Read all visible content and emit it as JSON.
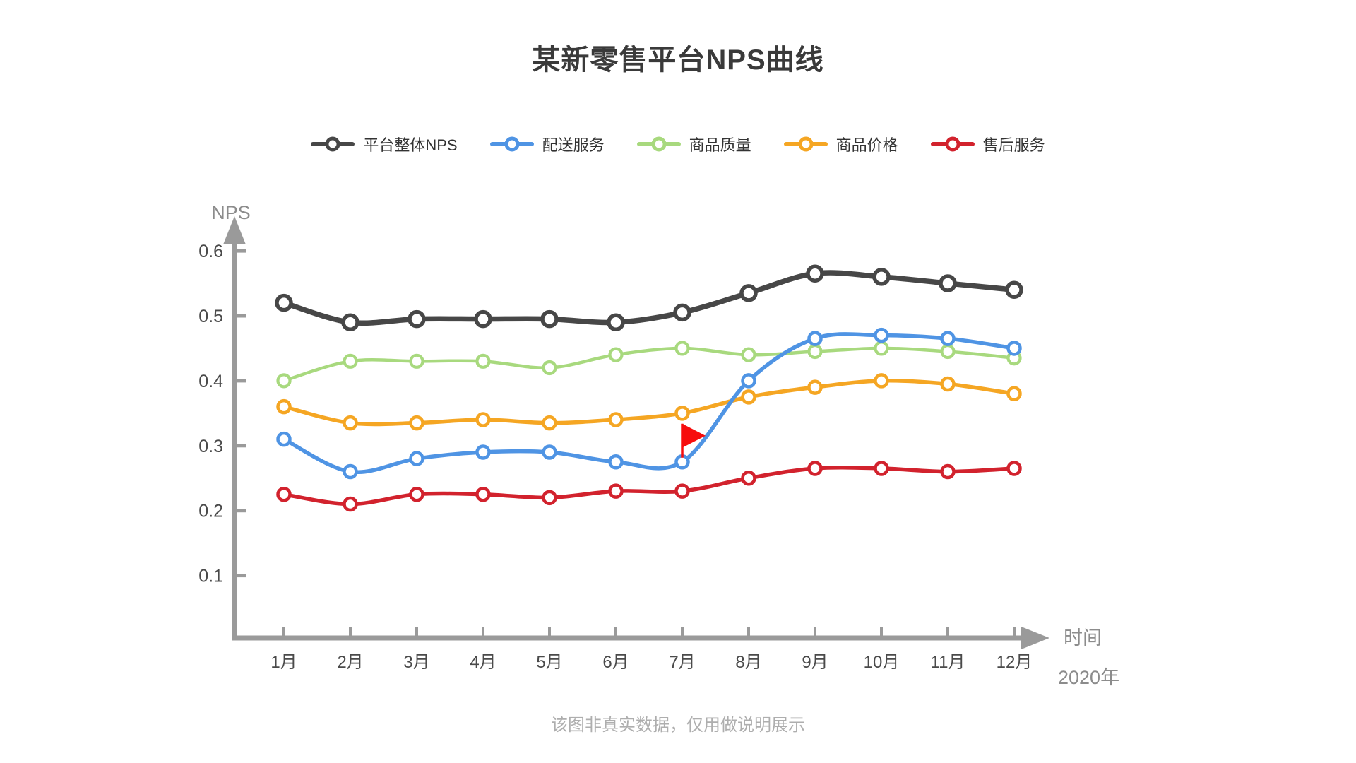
{
  "title": "某新零售平台NPS曲线",
  "footer": "该图非真实数据，仅用做说明展示",
  "chart_data": {
    "type": "line",
    "title": "某新零售平台NPS曲线",
    "x_label": "时间",
    "x_sublabel": "2020年",
    "y_label": "NPS",
    "categories": [
      "1月",
      "2月",
      "3月",
      "4月",
      "5月",
      "6月",
      "7月",
      "8月",
      "9月",
      "10月",
      "11月",
      "12月"
    ],
    "ytick_labels": [
      "0.1",
      "0.2",
      "0.3",
      "0.4",
      "0.5",
      "0.6"
    ],
    "ylim": [
      0,
      0.65
    ],
    "grid": "off",
    "legend_position": "top-center",
    "axis_color": "#9a9a9a",
    "series": [
      {
        "name": "平台整体NPS",
        "color": "#474747",
        "values": [
          0.52,
          0.49,
          0.495,
          0.495,
          0.495,
          0.49,
          0.505,
          0.535,
          0.565,
          0.56,
          0.55,
          0.54
        ]
      },
      {
        "name": "配送服务",
        "color": "#4f94e4",
        "values": [
          0.31,
          0.26,
          0.28,
          0.29,
          0.29,
          0.275,
          0.275,
          0.4,
          0.465,
          0.47,
          0.465,
          0.45
        ]
      },
      {
        "name": "商品质量",
        "color": "#a8d97e",
        "values": [
          0.4,
          0.43,
          0.43,
          0.43,
          0.42,
          0.44,
          0.45,
          0.44,
          0.445,
          0.45,
          0.445,
          0.435
        ]
      },
      {
        "name": "商品价格",
        "color": "#f5a623",
        "values": [
          0.36,
          0.335,
          0.335,
          0.34,
          0.335,
          0.34,
          0.35,
          0.375,
          0.39,
          0.4,
          0.395,
          0.38
        ]
      },
      {
        "name": "售后服务",
        "color": "#d2222d",
        "values": [
          0.225,
          0.21,
          0.225,
          0.225,
          0.22,
          0.23,
          0.23,
          0.25,
          0.265,
          0.265,
          0.26,
          0.265
        ]
      }
    ],
    "annotation": {
      "type": "flag",
      "series": "配送服务",
      "category": "7月",
      "color": "#f70d0d"
    }
  }
}
